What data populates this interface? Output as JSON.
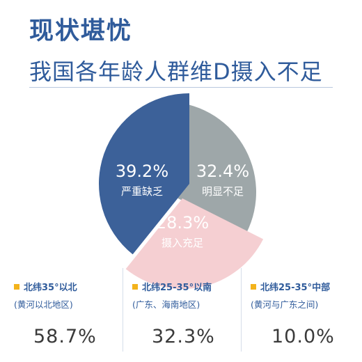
{
  "header": {
    "title": "现状堪忧",
    "subtitle": "我国各年龄人群维D摄入不足"
  },
  "colors": {
    "primary": "#2f5b9b",
    "deficient": "#3c6199",
    "insufficient": "#9ea7a9",
    "adequate": "#f5cfd2",
    "bullet": "#f3b31b"
  },
  "chart_data": {
    "type": "pie",
    "slices": [
      {
        "label": "明显不足",
        "value": 32.4,
        "value_label": "32.4%",
        "color": "#9ea7a9"
      },
      {
        "label": "摄入充足",
        "value": 28.3,
        "value_label": "28.3%",
        "color": "#f5cfd2"
      },
      {
        "label": "严重缺乏",
        "value": 39.2,
        "value_label": "39.2%",
        "color": "#3c6199"
      }
    ]
  },
  "stats": [
    {
      "title": "北纬35°以北",
      "note": "(黄河以北地区)",
      "value": "58.7%"
    },
    {
      "title": "北纬25-35°以南",
      "note": "(广东、海南地区)",
      "value": "32.3%"
    },
    {
      "title": "北纬25-35°中部",
      "note": "(黄河与广东之间)",
      "value": "10.0%"
    }
  ]
}
